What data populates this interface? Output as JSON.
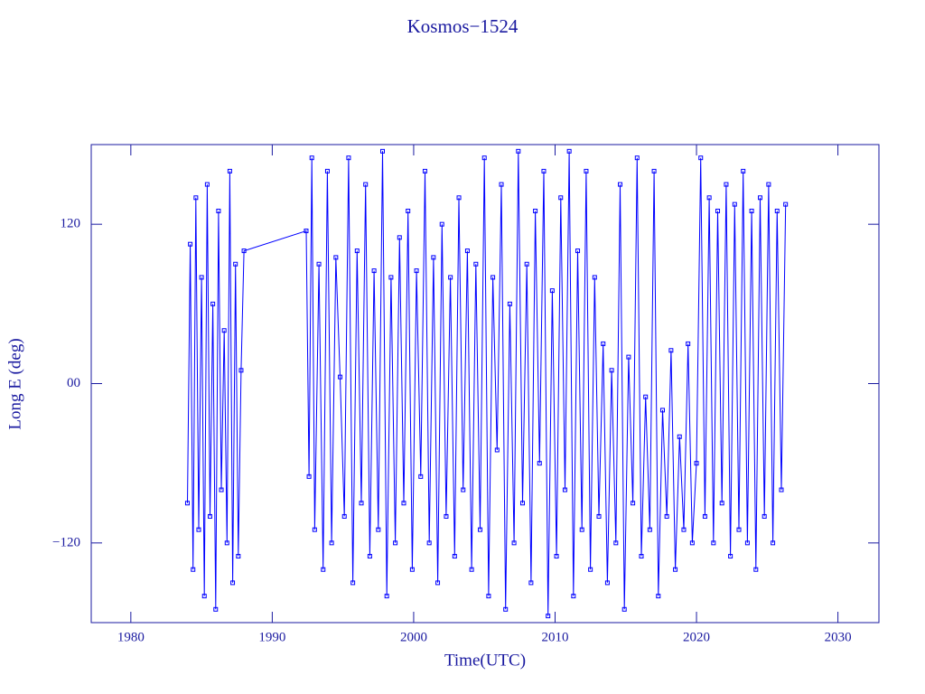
{
  "chart_data": {
    "type": "line",
    "title": "Kosmos−1524",
    "x_label": "Time(UTC)",
    "y_label": "Long E (deg)",
    "color": "#0000ff",
    "markers": true,
    "xlim": [
      1977.2,
      2032.9
    ],
    "ylim": [
      -180,
      180
    ],
    "xticks": [
      1980,
      1990,
      2000,
      2010,
      2020,
      2030
    ],
    "yticks": [
      {
        "value": 120,
        "label": "120"
      },
      {
        "value": 0,
        "label": "00"
      },
      {
        "value": -120,
        "label": "−120"
      }
    ],
    "x": [
      1984.0,
      1984.2,
      1984.4,
      1984.6,
      1984.8,
      1985.0,
      1985.2,
      1985.4,
      1985.6,
      1985.8,
      1986.0,
      1986.2,
      1986.4,
      1986.6,
      1986.8,
      1987.0,
      1987.2,
      1987.4,
      1987.6,
      1987.8,
      1988.0,
      1992.4,
      1992.6,
      1992.8,
      1993.0,
      1993.3,
      1993.6,
      1993.9,
      1994.2,
      1994.5,
      1994.8,
      1995.1,
      1995.4,
      1995.7,
      1996.0,
      1996.3,
      1996.6,
      1996.9,
      1997.2,
      1997.5,
      1997.8,
      1998.1,
      1998.4,
      1998.7,
      1999.0,
      1999.3,
      1999.6,
      1999.9,
      2000.2,
      2000.5,
      2000.8,
      2001.1,
      2001.4,
      2001.7,
      2002.0,
      2002.3,
      2002.6,
      2002.9,
      2003.2,
      2003.5,
      2003.8,
      2004.1,
      2004.4,
      2004.7,
      2005.0,
      2005.3,
      2005.6,
      2005.9,
      2006.2,
      2006.5,
      2006.8,
      2007.1,
      2007.4,
      2007.7,
      2008.0,
      2008.3,
      2008.6,
      2008.9,
      2009.2,
      2009.5,
      2009.8,
      2010.1,
      2010.4,
      2010.7,
      2011.0,
      2011.3,
      2011.6,
      2011.9,
      2012.2,
      2012.5,
      2012.8,
      2013.1,
      2013.4,
      2013.7,
      2014.0,
      2014.3,
      2014.6,
      2014.9,
      2015.2,
      2015.5,
      2015.8,
      2016.1,
      2016.4,
      2016.7,
      2017.0,
      2017.3,
      2017.6,
      2017.9,
      2018.2,
      2018.5,
      2018.8,
      2019.1,
      2019.4,
      2019.7,
      2020.0,
      2020.3,
      2020.6,
      2020.9,
      2021.2,
      2021.5,
      2021.8,
      2022.1,
      2022.4,
      2022.7,
      2023.0,
      2023.3,
      2023.6,
      2023.9,
      2024.2,
      2024.5,
      2024.8,
      2025.1,
      2025.4,
      2025.7,
      2026.0,
      2026.3
    ],
    "values": [
      -90,
      105,
      -140,
      140,
      -110,
      80,
      -160,
      150,
      -100,
      60,
      -170,
      130,
      -80,
      40,
      -120,
      160,
      -150,
      90,
      -130,
      10,
      100,
      115,
      -70,
      170,
      -110,
      90,
      -140,
      160,
      -120,
      95,
      5,
      -100,
      170,
      -150,
      100,
      -90,
      150,
      -130,
      85,
      -110,
      175,
      -160,
      80,
      -120,
      110,
      -90,
      130,
      -140,
      85,
      -70,
      160,
      -120,
      95,
      -150,
      120,
      -100,
      80,
      -130,
      140,
      -80,
      100,
      -140,
      90,
      -110,
      170,
      -160,
      80,
      -50,
      150,
      -170,
      60,
      -120,
      175,
      -90,
      90,
      -150,
      130,
      -60,
      160,
      -175,
      70,
      -130,
      140,
      -80,
      175,
      -160,
      100,
      -110,
      160,
      -140,
      80,
      -100,
      30,
      -150,
      10,
      -120,
      150,
      -170,
      20,
      -90,
      170,
      -130,
      -10,
      -110,
      160,
      -160,
      -20,
      -100,
      25,
      -140,
      -40,
      -110,
      30,
      -120,
      -60,
      170,
      -100,
      140,
      -120,
      130,
      -90,
      150,
      -130,
      135,
      -110,
      160,
      -120,
      130,
      -140,
      140,
      -100,
      150,
      -120,
      130,
      -80,
      135
    ]
  }
}
